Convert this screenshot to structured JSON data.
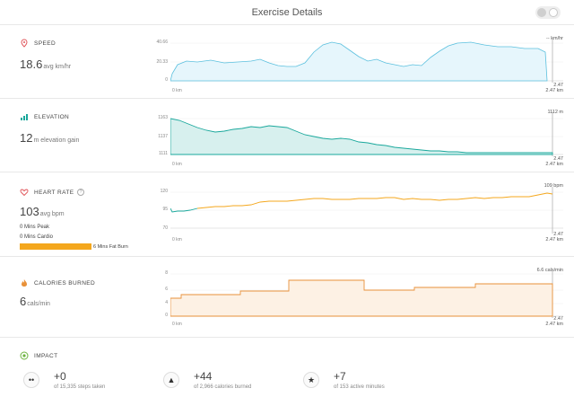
{
  "header": {
    "title": "Exercise Details"
  },
  "speed": {
    "title": "SPEED",
    "value": "18.6",
    "unit": "avg km/hr",
    "y_ticks": [
      "40.66",
      "20.33",
      "0"
    ],
    "x_start": "0 km",
    "x_end_top": "2.47",
    "x_end": "2.47 km",
    "right_label": "-- km/hr"
  },
  "elevation": {
    "title": "ELEVATION",
    "value": "12",
    "unit": "m elevation gain",
    "y_ticks": [
      "1163",
      "1137",
      "1111"
    ],
    "x_start": "0 km",
    "x_end_top": "2.47",
    "x_end": "2.47 km",
    "right_label": "1112 m"
  },
  "heart_rate": {
    "title": "HEART RATE",
    "help": "?",
    "value": "103",
    "unit": "avg bpm",
    "peak": "0 Mins Peak",
    "cardio": "0 Mins Cardio",
    "fat_burn": "6 Mins Fat Burn",
    "y_ticks": [
      "120",
      "95",
      "70"
    ],
    "x_start": "0 km",
    "x_end_top": "2.47",
    "x_end": "2.47 km",
    "right_label": "109 bpm"
  },
  "calories": {
    "title": "CALORIES BURNED",
    "value": "6",
    "unit": "cals/min",
    "y_ticks": [
      "8",
      "6",
      "4",
      "0"
    ],
    "x_start": "0 km",
    "x_end_top": "2.47",
    "x_end": "2.47 km",
    "right_label": "6.6 cals/min"
  },
  "impact": {
    "title": "IMPACT",
    "items": [
      {
        "icon": "footprints-icon",
        "value": "+0",
        "sub": "of 15,335 steps taken"
      },
      {
        "icon": "flame-icon",
        "value": "+44",
        "sub": "of 2,966 calories burned"
      },
      {
        "icon": "running-icon",
        "value": "+7",
        "sub": "of 153 active minutes"
      }
    ]
  },
  "colors": {
    "speed": "#5bc0de",
    "elevation": "#1aa89c",
    "heart_rate": "#f4a71d",
    "calories": "#e8913a"
  }
}
